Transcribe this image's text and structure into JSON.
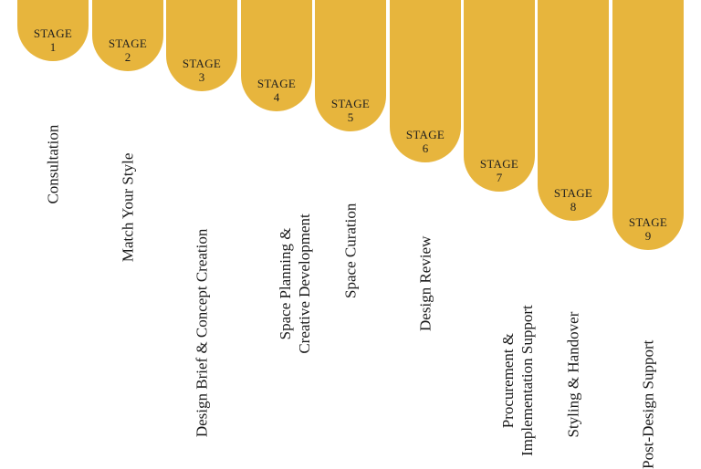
{
  "stages": [
    {
      "stage_word": "STAGE",
      "number": "1",
      "label_lines": [
        "Consultation"
      ]
    },
    {
      "stage_word": "STAGE",
      "number": "2",
      "label_lines": [
        "Match Your Style"
      ]
    },
    {
      "stage_word": "STAGE",
      "number": "3",
      "label_lines": [
        "Design Brief & Concept Creation"
      ]
    },
    {
      "stage_word": "STAGE",
      "number": "4",
      "label_lines": [
        "Space Planning &",
        "Creative Development"
      ]
    },
    {
      "stage_word": "STAGE",
      "number": "5",
      "label_lines": [
        "Space Curation"
      ]
    },
    {
      "stage_word": "STAGE",
      "number": "6",
      "label_lines": [
        "Design Review"
      ]
    },
    {
      "stage_word": "STAGE",
      "number": "7",
      "label_lines": [
        "Procurement &",
        "Implementation Support"
      ]
    },
    {
      "stage_word": "STAGE",
      "number": "8",
      "label_lines": [
        "Styling & Handover"
      ]
    },
    {
      "stage_word": "STAGE",
      "number": "9",
      "label_lines": [
        "Post-Design Support"
      ]
    }
  ],
  "colors": {
    "tab_fill": "#e7b53d",
    "text": "#1a1a1a",
    "background": "#ffffff"
  }
}
